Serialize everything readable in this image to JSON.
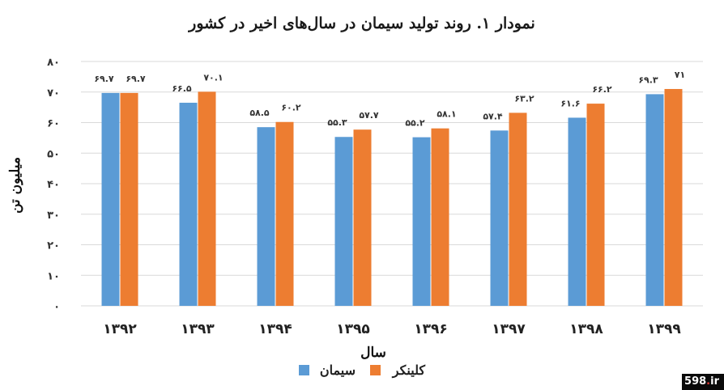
{
  "chart_data": {
    "type": "bar",
    "title": "نمودار ۱. روند تولید سیمان در سال‌های اخیر در کشور",
    "xlabel": "سال",
    "ylabel": "میلیون تن",
    "categories": [
      "۱۳۹۲",
      "۱۳۹۳",
      "۱۳۹۴",
      "۱۳۹۵",
      "۱۳۹۶",
      "۱۳۹۷",
      "۱۳۹۸",
      "۱۳۹۹"
    ],
    "ylim": [
      0,
      80
    ],
    "yticks": [
      0,
      10,
      20,
      30,
      40,
      50,
      60,
      70,
      80
    ],
    "ytick_labels": [
      "۰",
      "۱۰",
      "۲۰",
      "۳۰",
      "۴۰",
      "۵۰",
      "۶۰",
      "۷۰",
      "۸۰"
    ],
    "grid": true,
    "legend_position": "bottom",
    "series": [
      {
        "name": "سیمان",
        "color": "#5b9bd5",
        "values": [
          69.7,
          66.5,
          58.5,
          55.3,
          55.2,
          57.4,
          61.6,
          69.3
        ],
        "labels": [
          "۶۹.۷",
          "۶۶.۵",
          "۵۸.۵",
          "۵۵.۳",
          "۵۵.۲",
          "۵۷.۴",
          "۶۱.۶",
          "۶۹.۳"
        ]
      },
      {
        "name": "کلینکر",
        "color": "#ed7d31",
        "values": [
          69.7,
          70.1,
          60.2,
          57.7,
          58.1,
          63.2,
          66.2,
          71
        ],
        "labels": [
          "۶۹.۷",
          "۷۰.۱",
          "۶۰.۲",
          "۵۷.۷",
          "۵۸.۱",
          "۶۳.۲",
          "۶۶.۲",
          "۷۱"
        ]
      }
    ]
  },
  "watermark": {
    "brand": "598",
    "dot": ".",
    "tld": "ir"
  }
}
